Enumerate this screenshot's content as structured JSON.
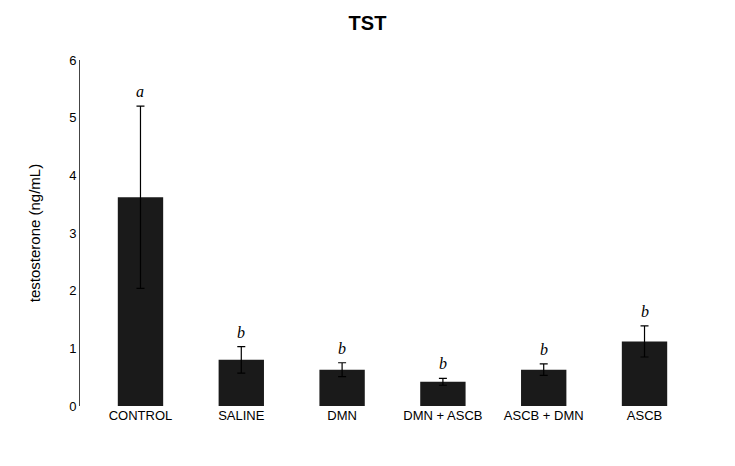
{
  "chart_data": {
    "type": "bar",
    "title": "TST",
    "ylabel": "testosterone (ng/mL)",
    "categories": [
      "CONTROL",
      "SALINE",
      "DMN",
      "DMN + ASCB",
      "ASCB + DMN",
      "ASCB"
    ],
    "values": [
      3.62,
      0.8,
      0.63,
      0.42,
      0.63,
      1.12
    ],
    "errors": [
      1.58,
      0.23,
      0.12,
      0.06,
      0.1,
      0.27
    ],
    "annotations": [
      "a",
      "b",
      "b",
      "b",
      "b",
      "b"
    ],
    "color": "#1a1a1a",
    "ylim": [
      0,
      6
    ],
    "yticks": [
      0,
      1,
      2,
      3,
      4,
      5,
      6
    ],
    "grid": false
  }
}
